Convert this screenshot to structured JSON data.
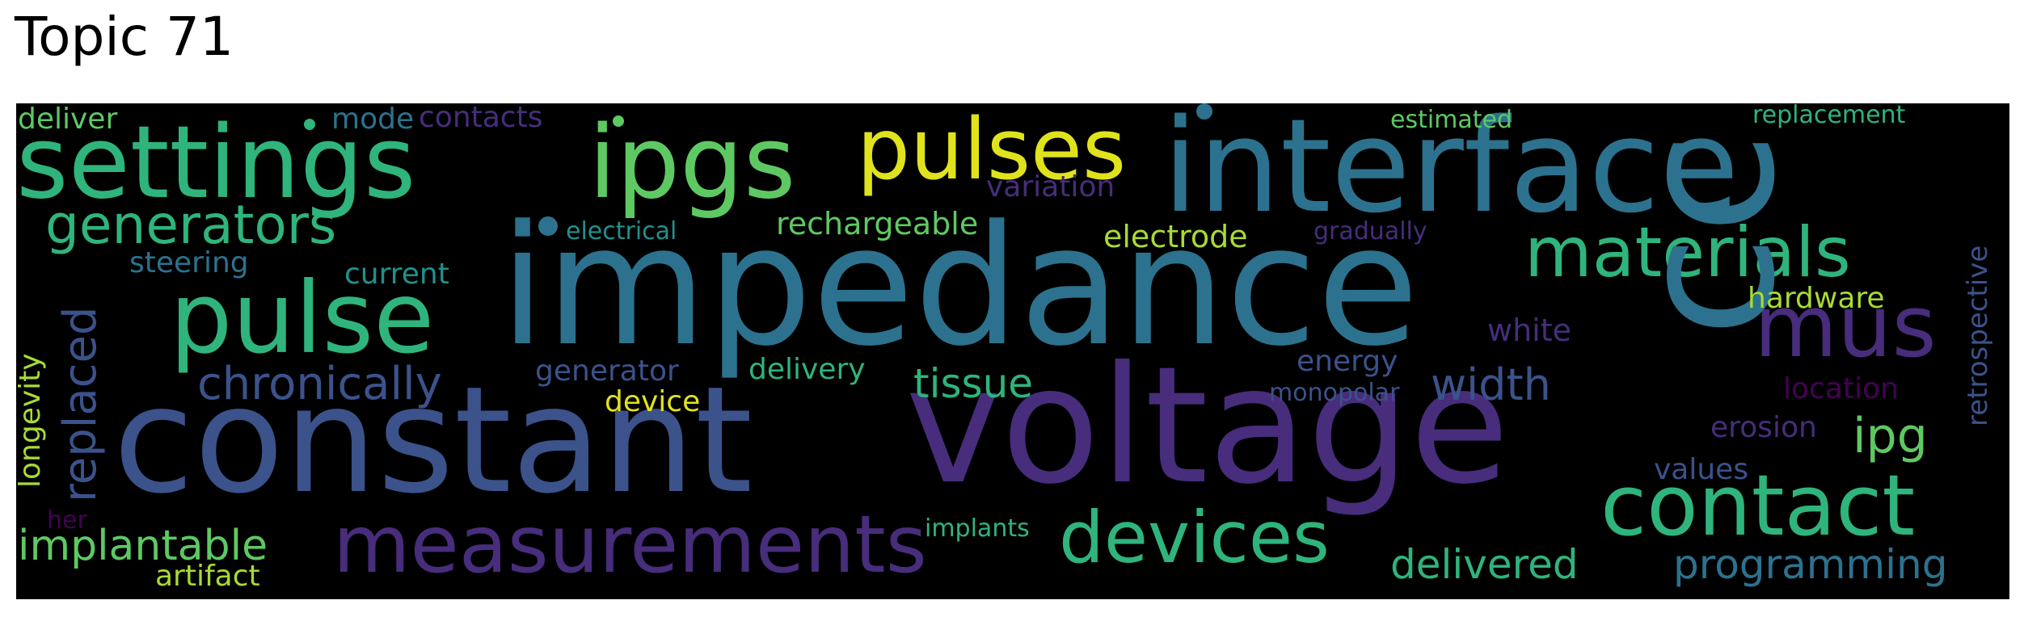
{
  "title": "Topic 71",
  "words": {
    "impedance": "impedance",
    "voltage": "voltage",
    "constant": "constant",
    "interface": "interface",
    "settings": "settings",
    "ipgs": "ipgs",
    "pulses": "pulses",
    "pulse": "pulse",
    "measurements": "measurements",
    "contact": "contact",
    "devices": "devices",
    "materials": "materials",
    "mus": "mus",
    "generators": "generators",
    "chronically": "chronically",
    "width": "width",
    "cc": "cc",
    "tissue": "tissue",
    "implantable": "implantable",
    "delivered": "delivered",
    "programming": "programming",
    "replaced": "replaced",
    "ipg": "ipg",
    "rechargeable": "rechargeable",
    "electrode": "electrode",
    "hardware": "hardware",
    "deliver": "deliver",
    "mode": "mode",
    "contacts": "contacts",
    "estimated": "estimated",
    "replacement": "replacement",
    "variation": "variation",
    "electrical": "electrical",
    "gradually": "gradually",
    "steering": "steering",
    "current": "current",
    "retrospective": "retrospective",
    "longevity": "longevity",
    "white": "white",
    "energy": "energy",
    "generator": "generator",
    "delivery": "delivery",
    "device": "device",
    "monopolar": "monopolar",
    "location": "location",
    "erosion": "erosion",
    "values": "values",
    "her": "her",
    "artifact": "artifact",
    "implants": "implants"
  },
  "colors": {
    "yellow": "#e0e31c",
    "lime": "#a8db34",
    "green": "#5ec962",
    "teal_green": "#2fb47c",
    "teal": "#21918c",
    "blue_teal": "#2c728e",
    "blue": "#3b528b",
    "indigo": "#472d7b",
    "purple": "#440154"
  }
}
